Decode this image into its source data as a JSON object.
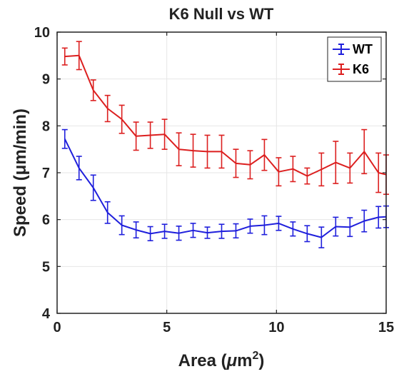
{
  "chart_data": {
    "type": "line",
    "title": "K6 Null vs WT",
    "xlabel_main": "Area (",
    "xlabel_mu": "μ",
    "xlabel_unit": "m",
    "xlabel_sup": "2",
    "xlabel_close": ")",
    "ylabel": "Speed (μm/min)",
    "xlim": [
      0,
      15
    ],
    "ylim": [
      4,
      10
    ],
    "xticks": [
      0,
      5,
      10,
      15
    ],
    "yticks": [
      4,
      5,
      6,
      7,
      8,
      9,
      10
    ],
    "grid": true,
    "legend_position": "top-right",
    "series": [
      {
        "name": "WT",
        "color": "#1f1fdc",
        "x": [
          0.35,
          1.0,
          1.65,
          2.3,
          2.95,
          3.6,
          4.25,
          4.9,
          5.55,
          6.2,
          6.85,
          7.5,
          8.15,
          8.8,
          9.45,
          10.1,
          10.75,
          11.4,
          12.05,
          12.7,
          13.35,
          14.0,
          14.65,
          15.0
        ],
        "y": [
          7.72,
          7.1,
          6.68,
          6.15,
          5.88,
          5.78,
          5.7,
          5.75,
          5.71,
          5.77,
          5.72,
          5.75,
          5.76,
          5.86,
          5.88,
          5.92,
          5.8,
          5.7,
          5.62,
          5.85,
          5.84,
          5.97,
          6.05,
          6.06
        ],
        "err": [
          0.2,
          0.25,
          0.27,
          0.23,
          0.2,
          0.17,
          0.15,
          0.15,
          0.15,
          0.15,
          0.12,
          0.15,
          0.15,
          0.15,
          0.2,
          0.15,
          0.15,
          0.17,
          0.22,
          0.2,
          0.2,
          0.23,
          0.23,
          0.23
        ]
      },
      {
        "name": "K6",
        "color": "#dc1f1f",
        "x": [
          0.35,
          1.0,
          1.65,
          2.3,
          2.95,
          3.6,
          4.25,
          4.9,
          5.55,
          6.2,
          6.85,
          7.5,
          8.15,
          8.8,
          9.45,
          10.1,
          10.75,
          11.4,
          12.05,
          12.7,
          13.35,
          14.0,
          14.65,
          15.0
        ],
        "y": [
          9.48,
          9.5,
          8.76,
          8.37,
          8.14,
          7.78,
          7.8,
          7.82,
          7.5,
          7.47,
          7.45,
          7.45,
          7.2,
          7.17,
          7.38,
          7.02,
          7.08,
          6.93,
          7.07,
          7.22,
          7.1,
          7.45,
          7.0,
          6.96
        ],
        "err": [
          0.18,
          0.3,
          0.22,
          0.28,
          0.3,
          0.3,
          0.28,
          0.32,
          0.35,
          0.35,
          0.35,
          0.35,
          0.3,
          0.3,
          0.33,
          0.3,
          0.27,
          0.17,
          0.35,
          0.45,
          0.32,
          0.47,
          0.42,
          0.42
        ]
      }
    ]
  }
}
